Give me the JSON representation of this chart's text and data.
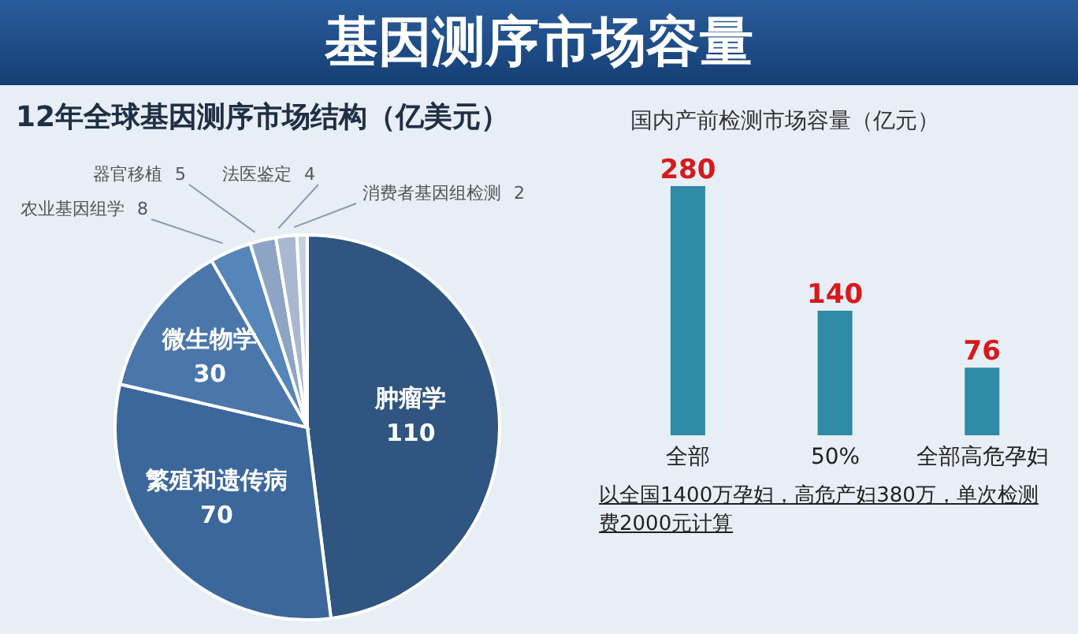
{
  "chart_data": [
    {
      "type": "pie",
      "title": "基因测序市场容量",
      "subtitle": "12年全球基因测序市场结构（亿美元）",
      "categories": [
        "肿瘤学",
        "繁殖和遗传病",
        "微生物学",
        "农业基因组学",
        "器官移植",
        "法医鉴定",
        "消费者基因组检测"
      ],
      "values": [
        110,
        70,
        30,
        8,
        5,
        4,
        2
      ],
      "colors": [
        "#2f5580",
        "#3c679a",
        "#4a76aa",
        "#5585b9",
        "#8da4c4",
        "#a9b8d0",
        "#c5d0e0"
      ],
      "data_labels": true
    },
    {
      "type": "bar",
      "title": "国内产前检测市场容量（亿元）",
      "categories": [
        "全部",
        "50%",
        "全部高危孕妇"
      ],
      "values": [
        280,
        140,
        76
      ],
      "color": "#2e8aa6",
      "data_labels": true,
      "annotations": [
        "以全国1400万孕妇，高危产妇380万，单次检测费2000元计算"
      ]
    }
  ]
}
